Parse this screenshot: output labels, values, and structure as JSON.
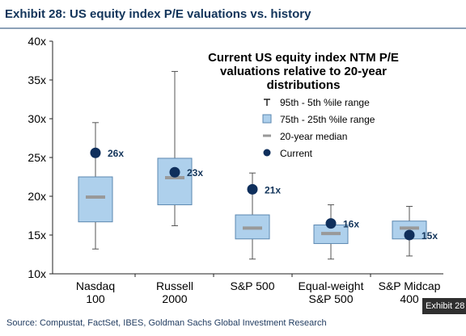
{
  "exhibit": {
    "title": "Exhibit 28: US equity index P/E valuations vs. history",
    "source": "Source: Compustat, FactSet, IBES, Goldman Sachs Global Investment Research",
    "corner_tag": "Exhibit 28"
  },
  "chart_data": {
    "type": "boxplot",
    "title_lines": [
      "Current US equity index NTM P/E",
      "valuations relative to 20-year",
      "distributions"
    ],
    "ylim": [
      10,
      40
    ],
    "yticks": [
      10,
      15,
      20,
      25,
      30,
      35,
      40
    ],
    "ytick_labels": [
      "10x",
      "15x",
      "20x",
      "25x",
      "30x",
      "35x",
      "40x"
    ],
    "categories": [
      [
        "Nasdaq",
        "100"
      ],
      [
        "Russell",
        "2000"
      ],
      [
        "S&P 500",
        ""
      ],
      [
        "Equal-weight",
        "S&P 500"
      ],
      [
        "S&P Midcap",
        "400"
      ]
    ],
    "series": [
      {
        "name": "95th - 5th %ile range",
        "low": [
          13.2,
          16.2,
          11.9,
          11.9,
          12.3
        ],
        "high": [
          29.5,
          36.1,
          23.0,
          18.9,
          18.7
        ]
      },
      {
        "name": "75th - 25th %ile range",
        "low": [
          16.7,
          18.9,
          14.5,
          13.9,
          14.5
        ],
        "high": [
          22.5,
          24.9,
          17.6,
          16.3,
          16.8
        ]
      },
      {
        "name": "20-year median",
        "values": [
          19.9,
          22.4,
          15.9,
          15.2,
          15.9
        ]
      },
      {
        "name": "Current",
        "values": [
          25.6,
          23.1,
          20.9,
          16.5,
          15.0
        ],
        "labels": [
          "26x",
          "23x",
          "21x",
          "16x",
          "15x"
        ]
      }
    ],
    "legend": [
      {
        "symbol": "T",
        "label": "95th - 5th %ile range"
      },
      {
        "symbol": "box",
        "label": "75th - 25th %ile range"
      },
      {
        "symbol": "dash",
        "label": "20-year median"
      },
      {
        "symbol": "dot",
        "label": "Current"
      }
    ],
    "legend_position": "top-right",
    "colors": {
      "box_fill": "#aed0ec",
      "box_stroke": "#5b87b0",
      "median": "#999999",
      "current": "#0f2f5c",
      "whisker": "#555555",
      "axis": "#222222",
      "text": "#000000",
      "label": "#12345a"
    }
  }
}
